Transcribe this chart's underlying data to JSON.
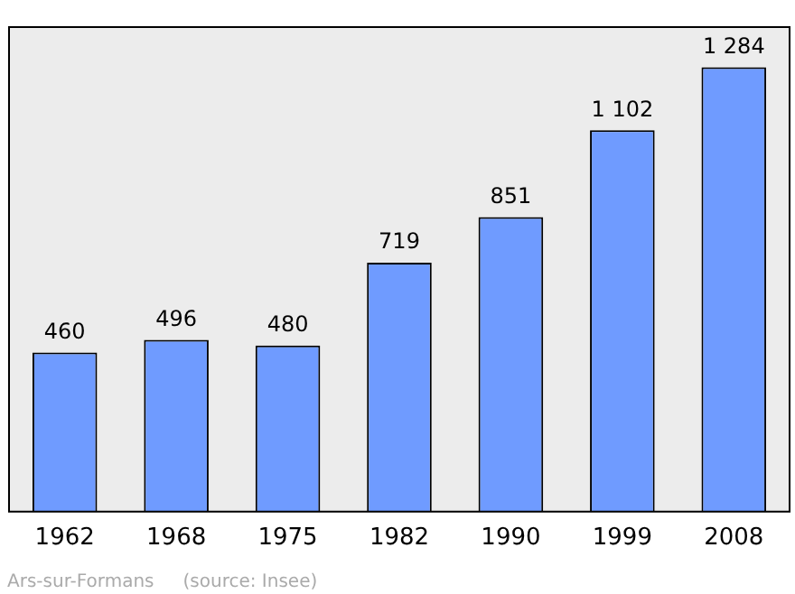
{
  "chart_data": {
    "type": "bar",
    "categories": [
      "1962",
      "1968",
      "1975",
      "1982",
      "1990",
      "1999",
      "2008"
    ],
    "values": [
      460,
      496,
      480,
      719,
      851,
      1102,
      1284
    ],
    "value_labels": [
      "460",
      "496",
      "480",
      "719",
      "851",
      "1 102",
      "1 284"
    ],
    "color": "#6f9bff",
    "grid": false,
    "annotations": [
      "Ars-sur-Formans",
      "(source: Insee)"
    ]
  }
}
